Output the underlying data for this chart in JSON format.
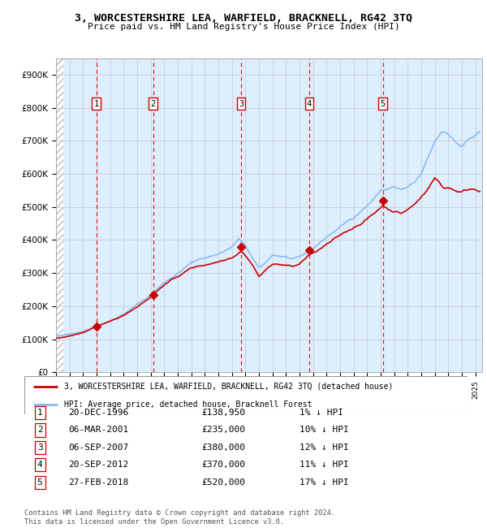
{
  "title": "3, WORCESTERSHIRE LEA, WARFIELD, BRACKNELL, RG42 3TQ",
  "subtitle": "Price paid vs. HM Land Registry's House Price Index (HPI)",
  "ylim": [
    0,
    950000
  ],
  "yticks": [
    0,
    100000,
    200000,
    300000,
    400000,
    500000,
    600000,
    700000,
    800000,
    900000
  ],
  "ytick_labels": [
    "£0",
    "£100K",
    "£200K",
    "£300K",
    "£400K",
    "£500K",
    "£600K",
    "£700K",
    "£800K",
    "£900K"
  ],
  "xlim_start": 1994.0,
  "xlim_end": 2025.5,
  "hpi_color": "#88bbee",
  "price_color": "#cc0000",
  "grid_color": "#c8c8c8",
  "vline_color": "#dd2222",
  "transaction_label_color": "#cc0000",
  "bg_chart": "#ddeeff",
  "purchases": [
    {
      "year": 1996.97,
      "price": 138950,
      "label": "1"
    },
    {
      "year": 2001.18,
      "price": 235000,
      "label": "2"
    },
    {
      "year": 2007.68,
      "price": 380000,
      "label": "3"
    },
    {
      "year": 2012.72,
      "price": 370000,
      "label": "4"
    },
    {
      "year": 2018.16,
      "price": 520000,
      "label": "5"
    }
  ],
  "purchase_dates": [
    "20-DEC-1996",
    "06-MAR-2001",
    "06-SEP-2007",
    "20-SEP-2012",
    "27-FEB-2018"
  ],
  "purchase_prices": [
    "£138,950",
    "£235,000",
    "£380,000",
    "£370,000",
    "£520,000"
  ],
  "purchase_hpi": [
    "1% ↓ HPI",
    "10% ↓ HPI",
    "12% ↓ HPI",
    "11% ↓ HPI",
    "17% ↓ HPI"
  ],
  "legend_line1": "3, WORCESTERSHIRE LEA, WARFIELD, BRACKNELL, RG42 3TQ (detached house)",
  "legend_line2": "HPI: Average price, detached house, Bracknell Forest",
  "footer": "Contains HM Land Registry data © Crown copyright and database right 2024.\nThis data is licensed under the Open Government Licence v3.0."
}
